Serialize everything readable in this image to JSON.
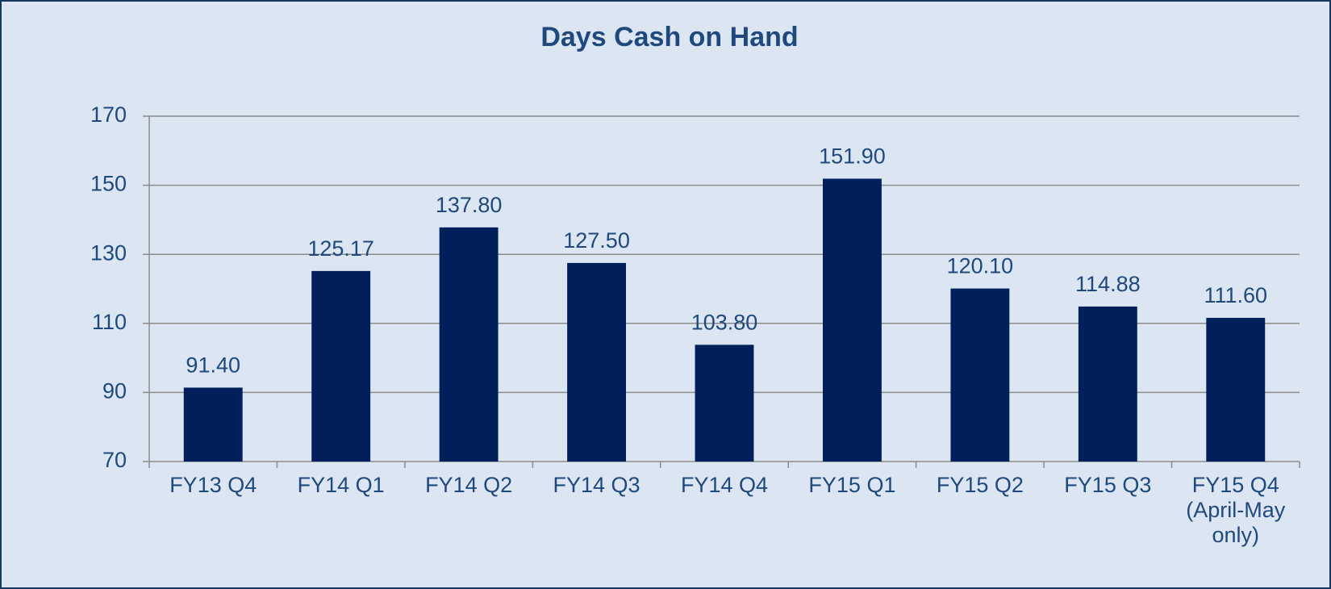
{
  "chart_data": {
    "type": "bar",
    "title": "Days Cash on Hand",
    "categories": [
      "FY13 Q4",
      "FY14 Q1",
      "FY14 Q2",
      "FY14 Q3",
      "FY14 Q4",
      "FY15 Q1",
      "FY15 Q2",
      "FY15 Q3",
      "FY15 Q4 (April-May only)"
    ],
    "values": [
      91.4,
      125.17,
      137.8,
      127.5,
      103.8,
      151.9,
      120.1,
      114.88,
      111.6
    ],
    "value_labels": [
      "91.40",
      "125.17",
      "137.80",
      "127.50",
      "103.80",
      "151.90",
      "120.10",
      "114.88",
      "111.60"
    ],
    "color": "#001f5b",
    "ylim": [
      70,
      170
    ],
    "yticks": [
      70,
      90,
      110,
      130,
      150,
      170
    ],
    "grid": true
  }
}
